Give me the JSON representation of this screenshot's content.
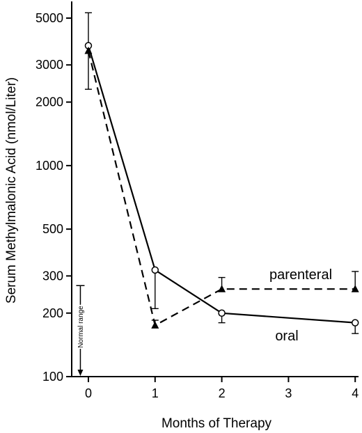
{
  "chart_data": {
    "type": "line",
    "title": "",
    "xlabel": "Months of Therapy",
    "ylabel": "Serum Methylmalonic Acid (nmol/Liter)",
    "x_ticks": [
      0,
      1,
      2,
      3,
      4
    ],
    "x_tick_labels": [
      "0",
      "1",
      "2",
      "3",
      "4"
    ],
    "xlim": [
      -0.25,
      4.05
    ],
    "y_scale": "log",
    "y_ticks": [
      100,
      200,
      300,
      500,
      1000,
      2000,
      3000,
      5000
    ],
    "y_tick_labels": [
      "100",
      "200",
      "300",
      "500",
      "1000",
      "2000",
      "3000",
      "5000"
    ],
    "ylim": [
      100,
      6000
    ],
    "grid": false,
    "legend": "none",
    "series": [
      {
        "name": "oral",
        "line_style": "solid",
        "marker": "open-circle",
        "x": [
          0,
          1,
          2,
          4
        ],
        "values": [
          3700,
          320,
          200,
          180
        ],
        "error_bars": [
          {
            "x": 0,
            "direction": "down",
            "to": 2300
          },
          {
            "x": 1,
            "direction": "down",
            "to": 210
          },
          {
            "x": 2,
            "direction": "down",
            "to": 180
          },
          {
            "x": 4,
            "direction": "down",
            "to": 160
          }
        ]
      },
      {
        "name": "parenteral",
        "line_style": "dashed",
        "marker": "filled-triangle",
        "x": [
          0,
          1,
          2,
          4
        ],
        "values": [
          3500,
          175,
          260,
          260
        ],
        "error_bars": [
          {
            "x": 0,
            "direction": "up",
            "to": 5300
          },
          {
            "x": 1,
            "direction": "up",
            "to": 185
          },
          {
            "x": 2,
            "direction": "up",
            "to": 295
          },
          {
            "x": 4,
            "direction": "up",
            "to": 315
          }
        ]
      }
    ],
    "annotations": [
      {
        "text": "Normal range",
        "x": -0.12,
        "y_from": 270,
        "y_to": 100
      }
    ]
  }
}
